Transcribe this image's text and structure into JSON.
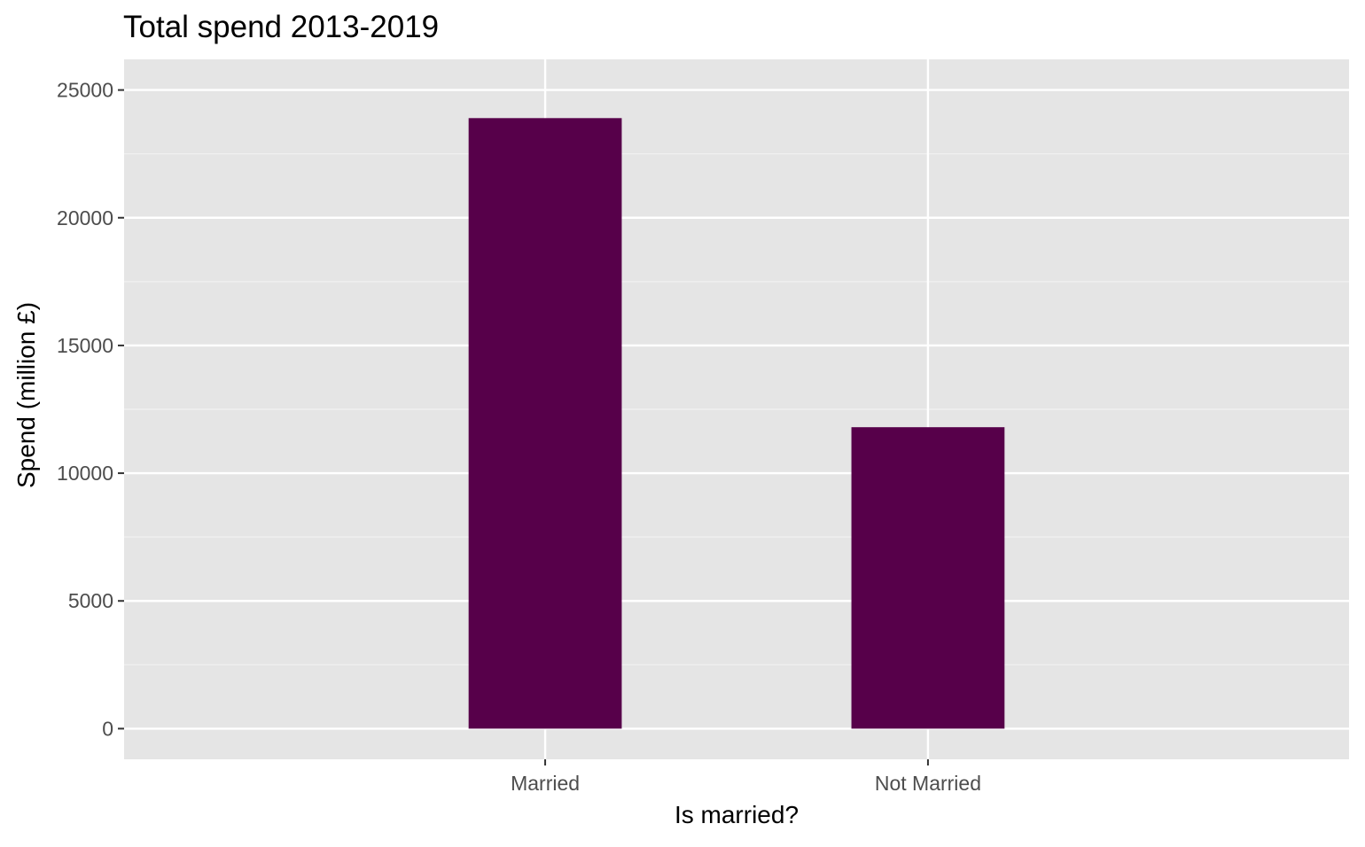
{
  "chart_data": {
    "type": "bar",
    "title": "Total spend 2013-2019",
    "xlabel": "Is married?",
    "ylabel": "Spend (million £)",
    "categories": [
      "Married",
      "Not Married"
    ],
    "values": [
      23900,
      11800
    ],
    "ylim": [
      -1200,
      26200
    ],
    "yticks": [
      0,
      5000,
      10000,
      15000,
      20000,
      25000
    ],
    "ytick_labels": [
      "0",
      "5000",
      "10000",
      "15000",
      "20000",
      "25000"
    ],
    "grid": true,
    "legend": "none",
    "colors": {
      "bar": "#57004a",
      "panel": "#e5e5e5",
      "grid_major": "#ffffff",
      "grid_minor": "#f2f2f2",
      "tick_text": "#4d4d4d",
      "axis_text": "#000000"
    }
  }
}
